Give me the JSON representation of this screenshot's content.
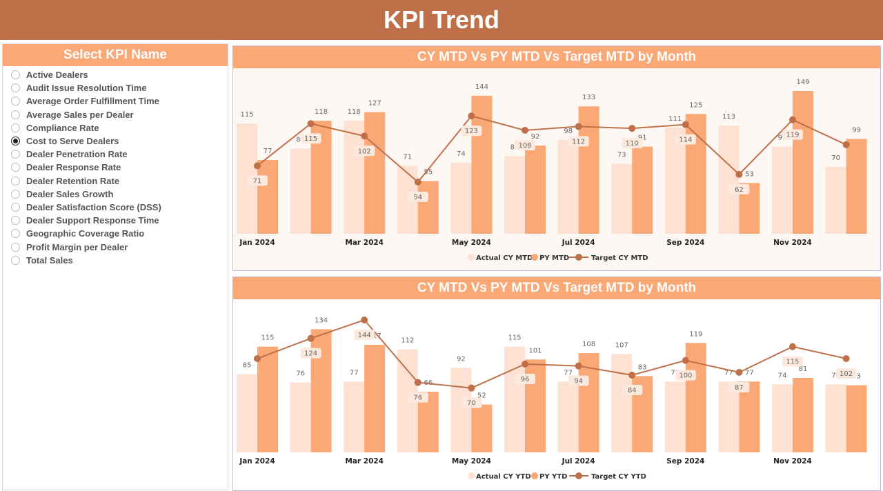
{
  "header": {
    "title": "KPI Trend"
  },
  "slicer": {
    "title": "Select KPI Name",
    "selected": "Cost to Serve Dealers",
    "items": [
      "Active Dealers",
      "Audit Issue Resolution Time",
      "Average Order Fulfillment Time",
      "Average Sales per Dealer",
      "Compliance Rate",
      "Cost to Serve Dealers",
      "Dealer Penetration Rate",
      "Dealer Response Rate",
      "Dealer Retention Rate",
      "Dealer Sales Growth",
      "Dealer Satisfaction Score (DSS)",
      "Dealer Support Response Time",
      "Geographic Coverage Ratio",
      "Profit Margin per Dealer",
      "Total Sales"
    ]
  },
  "colors": {
    "header": "#BF7049",
    "accent": "#FBA877",
    "actual": "#FDE1D2",
    "py": "#FBA877",
    "target": "#BF7049"
  },
  "chart_data": [
    {
      "type": "bar",
      "title": "CY MTD Vs PY MTD Vs Target MTD by Month",
      "legend_position": "bottom",
      "categories": [
        "Jan 2024",
        "Feb 2024",
        "Mar 2024",
        "Apr 2024",
        "May 2024",
        "Jun 2024",
        "Jul 2024",
        "Aug 2024",
        "Sep 2024",
        "Oct 2024",
        "Nov 2024",
        "Dec 2024"
      ],
      "tick_labels": [
        "Jan 2024",
        "",
        "Mar 2024",
        "",
        "May 2024",
        "",
        "Jul 2024",
        "",
        "Sep 2024",
        "",
        "Nov 2024",
        ""
      ],
      "series": [
        {
          "name": "Actual CY MTD",
          "kind": "bar",
          "values": [
            115,
            89,
            118,
            71,
            74,
            81,
            98,
            73,
            111,
            113,
            91,
            70
          ]
        },
        {
          "name": "PY MTD",
          "kind": "bar",
          "values": [
            77,
            118,
            127,
            55,
            144,
            92,
            133,
            91,
            125,
            53,
            149,
            99
          ]
        },
        {
          "name": "Target CY MTD",
          "kind": "line",
          "values": [
            71,
            115,
            102,
            54,
            123,
            108,
            112,
            110,
            114,
            62,
            119,
            93
          ],
          "labels_shown": [
            true,
            true,
            true,
            true,
            true,
            true,
            true,
            true,
            true,
            true,
            true,
            false
          ]
        }
      ]
    },
    {
      "type": "bar",
      "title": "CY MTD Vs PY MTD Vs Target MTD by Month",
      "legend_position": "bottom",
      "categories": [
        "Jan 2024",
        "Feb 2024",
        "Mar 2024",
        "Apr 2024",
        "May 2024",
        "Jun 2024",
        "Jul 2024",
        "Aug 2024",
        "Sep 2024",
        "Oct 2024",
        "Nov 2024",
        "Dec 2024"
      ],
      "tick_labels": [
        "Jan 2024",
        "",
        "Mar 2024",
        "",
        "May 2024",
        "",
        "Jul 2024",
        "",
        "Sep 2024",
        "",
        "Nov 2024",
        ""
      ],
      "series": [
        {
          "name": "Actual CY YTD",
          "kind": "bar",
          "values": [
            85,
            76,
            77,
            112,
            92,
            115,
            77,
            107,
            77,
            77,
            74,
            74
          ]
        },
        {
          "name": "PY YTD",
          "kind": "bar",
          "values": [
            115,
            134,
            117,
            66,
            52,
            101,
            108,
            83,
            119,
            77,
            81,
            73
          ]
        },
        {
          "name": "Target CY YTD",
          "kind": "line",
          "values": [
            102,
            124,
            144,
            76,
            70,
            96,
            94,
            84,
            100,
            87,
            115,
            102
          ],
          "labels_shown": [
            false,
            true,
            true,
            true,
            true,
            true,
            true,
            true,
            true,
            true,
            true,
            true
          ]
        }
      ]
    }
  ]
}
